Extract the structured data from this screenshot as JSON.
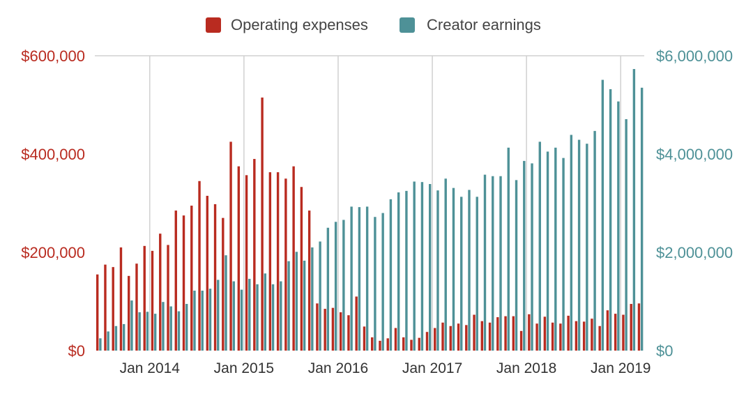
{
  "chart_data": {
    "type": "bar",
    "legend": {
      "placement": "top-center",
      "entries": [
        "Operating expenses",
        "Creator earnings"
      ]
    },
    "colors": {
      "operating_expenses": "#b92b20",
      "creator_earnings": "#4e9197",
      "left_axis_text": "#b92b20",
      "right_axis_text": "#4e9197",
      "x_axis_text": "#333333",
      "gridline": "#d0d0d0"
    },
    "x_tick_labels": [
      "Jan 2014",
      "Jan 2015",
      "Jan 2016",
      "Jan 2017",
      "Jan 2018",
      "Jan 2019"
    ],
    "x_tick_months": [
      "2014-01",
      "2015-01",
      "2016-01",
      "2017-01",
      "2018-01",
      "2019-01"
    ],
    "y_left": {
      "min": 0,
      "max": 600000,
      "ticks": [
        0,
        200000,
        400000,
        600000
      ],
      "tick_labels": [
        "$0",
        "$200,000",
        "$400,000",
        "$600,000"
      ]
    },
    "y_right": {
      "min": 0,
      "max": 6000000,
      "ticks": [
        0,
        2000000,
        4000000,
        6000000
      ],
      "tick_labels": [
        "$0",
        "$2,000,000",
        "$4,000,000",
        "$6,000,000"
      ]
    },
    "grid": {
      "vertical": true,
      "horizontal_top": true
    },
    "months": [
      "2013-06",
      "2013-07",
      "2013-08",
      "2013-09",
      "2013-10",
      "2013-11",
      "2013-12",
      "2014-01",
      "2014-02",
      "2014-03",
      "2014-04",
      "2014-05",
      "2014-06",
      "2014-07",
      "2014-08",
      "2014-09",
      "2014-10",
      "2014-11",
      "2014-12",
      "2015-01",
      "2015-02",
      "2015-03",
      "2015-04",
      "2015-05",
      "2015-06",
      "2015-07",
      "2015-08",
      "2015-09",
      "2015-10",
      "2015-11",
      "2015-12",
      "2016-01",
      "2016-02",
      "2016-03",
      "2016-04",
      "2016-05",
      "2016-06",
      "2016-07",
      "2016-08",
      "2016-09",
      "2016-10",
      "2016-11",
      "2016-12",
      "2017-01",
      "2017-02",
      "2017-03",
      "2017-04",
      "2017-05",
      "2017-06",
      "2017-07",
      "2017-08",
      "2017-09",
      "2017-10",
      "2017-11",
      "2017-12",
      "2018-01",
      "2018-02",
      "2018-03",
      "2018-04",
      "2018-05",
      "2018-06",
      "2018-07",
      "2018-08",
      "2018-09",
      "2018-10",
      "2018-11",
      "2018-12",
      "2019-01",
      "2019-02",
      "2019-03"
    ],
    "series": [
      {
        "name": "Operating expenses",
        "axis": "left",
        "values": [
          155000,
          175000,
          170000,
          210000,
          152000,
          177000,
          213000,
          203000,
          238000,
          215000,
          285000,
          275000,
          295000,
          345000,
          315000,
          298000,
          270000,
          425000,
          375000,
          357000,
          390000,
          515000,
          363000,
          363000,
          350000,
          375000,
          333000,
          285000,
          96000,
          85000,
          87000,
          78000,
          72000,
          110000,
          49000,
          27000,
          20000,
          25000,
          46000,
          27000,
          22000,
          26000,
          38000,
          46000,
          57000,
          50000,
          55000,
          52000,
          73000,
          60000,
          57000,
          68000,
          70000,
          70000,
          40000,
          74000,
          55000,
          69000,
          57000,
          55000,
          71000,
          60000,
          59000,
          65000,
          50000,
          82000,
          75000,
          73000,
          95000,
          96000
        ]
      },
      {
        "name": "Creator earnings",
        "axis": "right",
        "values": [
          250000,
          390000,
          500000,
          540000,
          1020000,
          780000,
          790000,
          750000,
          990000,
          900000,
          800000,
          950000,
          1220000,
          1220000,
          1260000,
          1440000,
          1940000,
          1410000,
          1240000,
          1460000,
          1350000,
          1570000,
          1350000,
          1410000,
          1820000,
          2010000,
          1830000,
          2100000,
          2220000,
          2500000,
          2620000,
          2660000,
          2930000,
          2920000,
          2930000,
          2720000,
          2800000,
          3080000,
          3220000,
          3250000,
          3440000,
          3430000,
          3390000,
          3260000,
          3500000,
          3310000,
          3130000,
          3270000,
          3130000,
          3580000,
          3550000,
          3550000,
          4130000,
          3470000,
          3860000,
          3810000,
          4250000,
          4050000,
          4130000,
          3920000,
          4390000,
          4290000,
          4210000,
          4470000,
          5510000,
          5320000,
          5070000,
          4710000,
          5730000,
          5350000
        ]
      }
    ]
  }
}
